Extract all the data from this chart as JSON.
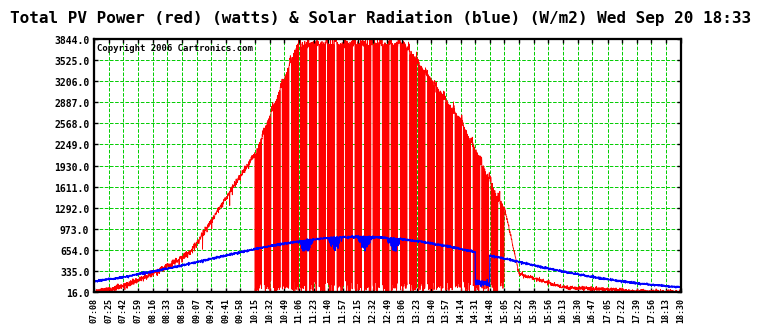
{
  "title": "Total PV Power (red) (watts) & Solar Radiation (blue) (W/m2) Wed Sep 20 18:33",
  "copyright": "Copyright 2006 Cartronics.com",
  "yticks": [
    16.0,
    335.0,
    654.0,
    973.0,
    1292.0,
    1611.0,
    1930.0,
    2249.0,
    2568.0,
    2887.0,
    3206.0,
    3525.0,
    3844.0
  ],
  "ymin": 16.0,
  "ymax": 3844.0,
  "xtick_labels": [
    "07:08",
    "07:25",
    "07:42",
    "07:59",
    "08:16",
    "08:33",
    "08:50",
    "09:07",
    "09:24",
    "09:41",
    "09:58",
    "10:15",
    "10:32",
    "10:49",
    "11:06",
    "11:23",
    "11:40",
    "11:57",
    "12:15",
    "12:32",
    "12:49",
    "13:06",
    "13:23",
    "13:40",
    "13:57",
    "14:14",
    "14:31",
    "14:48",
    "15:05",
    "15:22",
    "15:39",
    "15:56",
    "16:13",
    "16:30",
    "16:47",
    "17:05",
    "17:22",
    "17:39",
    "17:56",
    "18:13",
    "18:30"
  ],
  "background_color": "#ffffff",
  "grid_color": "#00cc00",
  "border_color": "#000000",
  "title_fontsize": 11.5,
  "copyright_fontsize": 7,
  "red_color": "#ff0000",
  "blue_color": "#0000ff"
}
